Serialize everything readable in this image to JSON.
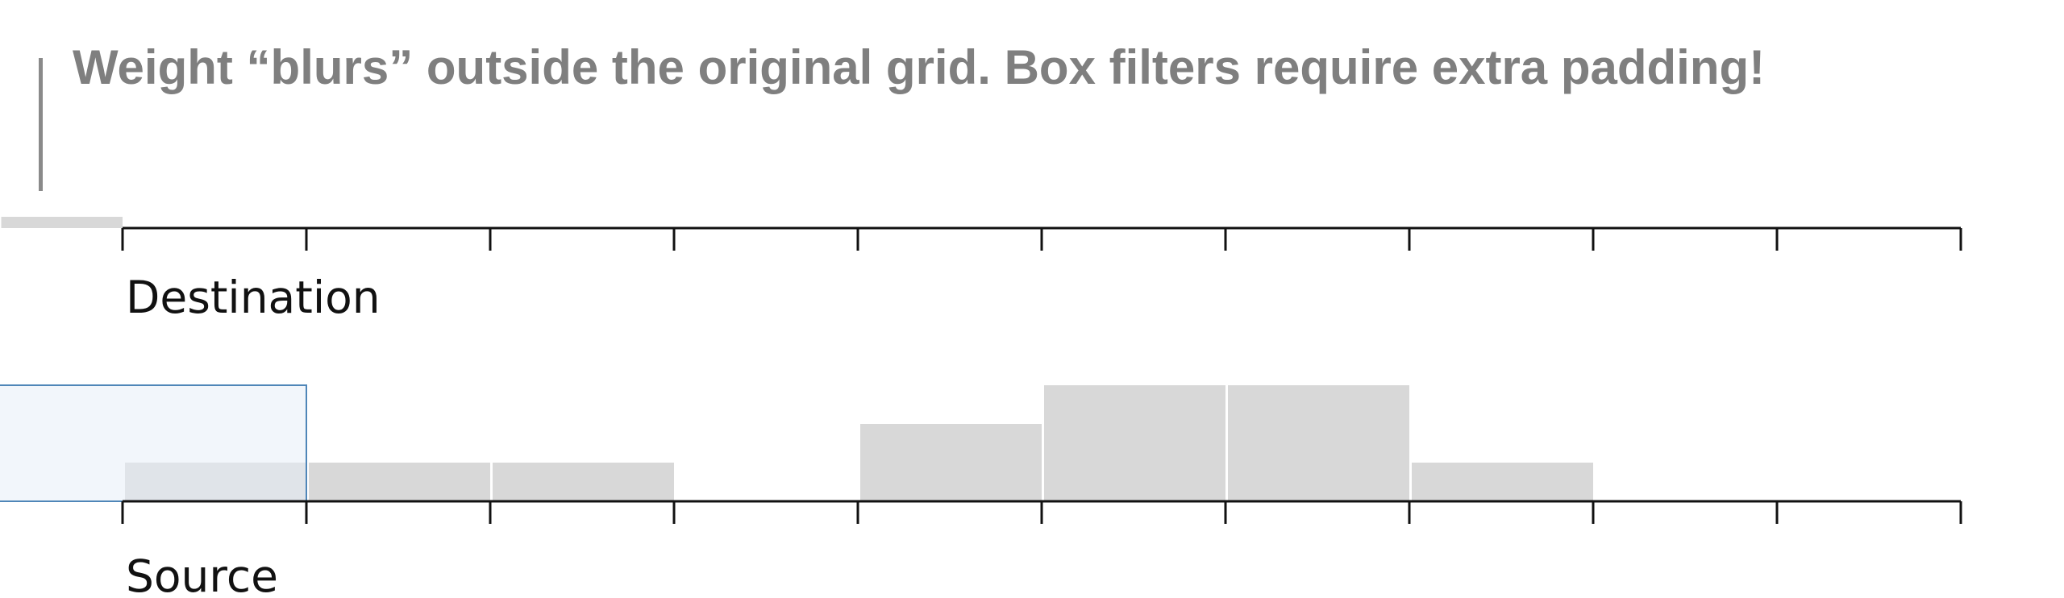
{
  "headline": "Weight “blurs” outside the original grid. Box filters require extra padding!",
  "colors": {
    "accent": "#8a8a8a",
    "headline": "#7f7f7f",
    "axis": "#111111",
    "weight_bar": "#d8d8d8",
    "filter_fill": "#e8eff7",
    "filter_stroke": "#4f86b8"
  },
  "destination": {
    "label": "Destination",
    "cells": 10
  },
  "source": {
    "label": "Source",
    "cells": 10,
    "weights": [
      1,
      1,
      1,
      0,
      2,
      3,
      3,
      1,
      0,
      0
    ]
  },
  "box_filter": {
    "from_cell": -1,
    "to_cell": 1,
    "height": 3
  },
  "padding_bar": {
    "from_cell": -0.66,
    "to_cell": 0,
    "level": 0.3
  }
}
